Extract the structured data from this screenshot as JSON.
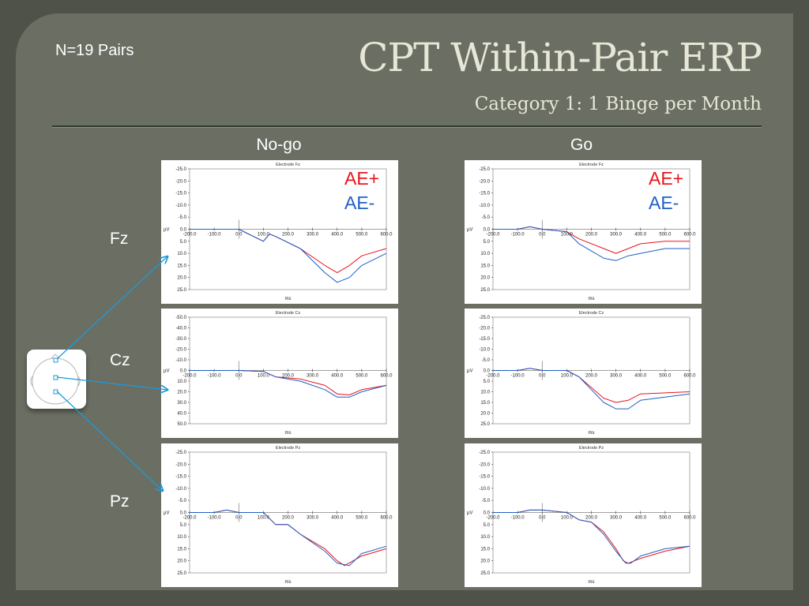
{
  "slide": {
    "count_label": "N=19 Pairs",
    "title": "CPT Within-Pair ERP",
    "subtitle": "Category 1: 1 Binge per Month",
    "accent_color": "#1b9bd8"
  },
  "columns": [
    "No-go",
    "Go"
  ],
  "rows": [
    "Fz",
    "Cz",
    "Pz"
  ],
  "legend": {
    "ae_plus": "AE+",
    "ae_minus": "AE-",
    "ae_plus_color": "#e8141c",
    "ae_minus_color": "#1f5fc4"
  },
  "chart_data": [
    {
      "type": "line",
      "condition": "No-go",
      "title": "Electrode Fz",
      "xlabel": "ms",
      "ylabel": "µV",
      "x": [
        -200,
        -100,
        0,
        100,
        200,
        300,
        400,
        500,
        600
      ],
      "xtick_labels": [
        "-200.0",
        "-100.0",
        "0.0",
        "100.0",
        "200.0",
        "300.0",
        "400.0",
        "500.0",
        "600.0"
      ],
      "ytick_labels": [
        "-25.0",
        "-20.0",
        "-15.0",
        "-10.0",
        "-5.0",
        "0.0",
        "5.0",
        "10.0",
        "15.0",
        "20.0",
        "25.0"
      ],
      "ylim": [
        -25,
        25
      ],
      "inverted_y": true,
      "series": [
        {
          "name": "AE+",
          "values": [
            0,
            0,
            0,
            0,
            5,
            2,
            3,
            8,
            15,
            18,
            15,
            11,
            8
          ],
          "x": [
            -200,
            -100,
            -50,
            0,
            100,
            125,
            150,
            250,
            350,
            400,
            450,
            500,
            600
          ]
        },
        {
          "name": "AE-",
          "values": [
            0,
            0,
            0,
            0,
            5,
            2,
            3,
            8,
            18,
            22,
            20,
            15,
            10
          ],
          "x": [
            -200,
            -100,
            -50,
            0,
            100,
            125,
            150,
            250,
            350,
            400,
            450,
            500,
            600
          ]
        }
      ]
    },
    {
      "type": "line",
      "condition": "Go",
      "title": "Electrode Fz",
      "xlabel": "ms",
      "ylabel": "µV",
      "x": [
        -200,
        -100,
        0,
        100,
        200,
        300,
        400,
        500,
        600
      ],
      "xtick_labels": [
        "-200.0",
        "-100.0",
        "0.0",
        "100.0",
        "200.0",
        "300.0",
        "400.0",
        "500.0",
        "600.0"
      ],
      "ytick_labels": [
        "-25.0",
        "-20.0",
        "-15.0",
        "-10.0",
        "-5.0",
        "0.0",
        "5.0",
        "10.0",
        "15.0",
        "20.0",
        "25.0"
      ],
      "ylim": [
        -25,
        25
      ],
      "inverted_y": true,
      "series": [
        {
          "name": "AE+",
          "values": [
            0,
            0,
            -1,
            0,
            1,
            4,
            8,
            10,
            8,
            6,
            5,
            5
          ],
          "x": [
            -200,
            -100,
            -50,
            0,
            100,
            150,
            250,
            300,
            350,
            400,
            500,
            600
          ]
        },
        {
          "name": "AE-",
          "values": [
            0,
            0,
            -1,
            0,
            1,
            6,
            12,
            13,
            11,
            10,
            8,
            8
          ],
          "x": [
            -200,
            -100,
            -50,
            0,
            100,
            150,
            250,
            300,
            350,
            400,
            500,
            600
          ]
        }
      ]
    },
    {
      "type": "line",
      "condition": "No-go",
      "title": "Electrode Cz",
      "xlabel": "ms",
      "ylabel": "µV",
      "x": [
        -200,
        -100,
        0,
        100,
        200,
        300,
        400,
        500,
        600
      ],
      "xtick_labels": [
        "-200.0",
        "-100.0",
        "0.0",
        "100.0",
        "200.0",
        "300.0",
        "400.0",
        "500.0",
        "600.0"
      ],
      "ytick_labels": [
        "-50.0",
        "-40.0",
        "-30.0",
        "-20.0",
        "-10.0",
        "0.0",
        "10.0",
        "20.0",
        "30.0",
        "40.0",
        "50.0"
      ],
      "ylim": [
        -50,
        50
      ],
      "inverted_y": true,
      "series": [
        {
          "name": "AE+",
          "values": [
            0,
            0,
            0,
            0,
            1,
            6,
            8,
            14,
            22,
            23,
            18,
            14
          ],
          "x": [
            -200,
            -100,
            -50,
            0,
            100,
            150,
            250,
            350,
            400,
            450,
            500,
            600
          ]
        },
        {
          "name": "AE-",
          "values": [
            0,
            0,
            0,
            0,
            1,
            6,
            10,
            18,
            25,
            25,
            20,
            14
          ],
          "x": [
            -200,
            -100,
            -50,
            0,
            100,
            150,
            250,
            350,
            400,
            450,
            500,
            600
          ]
        }
      ]
    },
    {
      "type": "line",
      "condition": "Go",
      "title": "Electrode Cz",
      "xlabel": "ms",
      "ylabel": "µV",
      "x": [
        -200,
        -100,
        0,
        100,
        200,
        300,
        400,
        500,
        600
      ],
      "xtick_labels": [
        "-200.0",
        "-100.0",
        "0.0",
        "100.0",
        "200.0",
        "300.0",
        "400.0",
        "500.0",
        "600.0"
      ],
      "ytick_labels": [
        "-25.0",
        "-20.0",
        "-15.0",
        "-10.0",
        "-5.0",
        "0.0",
        "5.0",
        "10.0",
        "15.0",
        "20.0",
        "25.0"
      ],
      "ylim": [
        -25,
        25
      ],
      "inverted_y": true,
      "series": [
        {
          "name": "AE+",
          "values": [
            0,
            0,
            -1,
            0,
            0,
            3,
            8,
            13,
            15,
            14,
            11,
            10
          ],
          "x": [
            -200,
            -100,
            -50,
            0,
            100,
            150,
            200,
            250,
            300,
            350,
            400,
            600
          ]
        },
        {
          "name": "AE-",
          "values": [
            0,
            0,
            -1,
            0,
            0,
            3,
            9,
            15,
            18,
            18,
            14,
            11
          ],
          "x": [
            -200,
            -100,
            -50,
            0,
            100,
            150,
            200,
            250,
            300,
            350,
            400,
            600
          ]
        }
      ]
    },
    {
      "type": "line",
      "condition": "No-go",
      "title": "Electrode Pz",
      "xlabel": "ms",
      "ylabel": "µV",
      "x": [
        -200,
        -100,
        0,
        100,
        200,
        300,
        400,
        500,
        600
      ],
      "xtick_labels": [
        "-200.0",
        "-100.0",
        "0.0",
        "100.0",
        "200.0",
        "300.0",
        "400.0",
        "500.0",
        "600.0"
      ],
      "ytick_labels": [
        "-25.0",
        "-20.0",
        "-15.0",
        "-10.0",
        "-5.0",
        "0.0",
        "5.0",
        "10.0",
        "15.0",
        "20.0",
        "25.0"
      ],
      "ylim": [
        -25,
        25
      ],
      "inverted_y": true,
      "series": [
        {
          "name": "AE+",
          "values": [
            0,
            0,
            -1,
            0,
            0,
            5,
            5,
            9,
            15,
            20,
            22,
            18,
            15
          ],
          "x": [
            -200,
            -100,
            -50,
            0,
            100,
            150,
            200,
            250,
            350,
            400,
            430,
            500,
            600
          ]
        },
        {
          "name": "AE-",
          "values": [
            0,
            0,
            -1,
            0,
            0,
            5,
            5,
            9,
            16,
            21,
            22,
            17,
            14
          ],
          "x": [
            -200,
            -100,
            -50,
            0,
            100,
            150,
            200,
            250,
            350,
            400,
            450,
            500,
            600
          ]
        }
      ]
    },
    {
      "type": "line",
      "condition": "Go",
      "title": "Electrode Pz",
      "xlabel": "ms",
      "ylabel": "µV",
      "x": [
        -200,
        -100,
        0,
        100,
        200,
        300,
        400,
        500,
        600
      ],
      "xtick_labels": [
        "-200.0",
        "-100.0",
        "0.0",
        "100.0",
        "200.0",
        "300.0",
        "400.0",
        "500.0",
        "600.0"
      ],
      "ytick_labels": [
        "-25.0",
        "-20.0",
        "-15.0",
        "-10.0",
        "-5.0",
        "0.0",
        "5.0",
        "10.0",
        "15.0",
        "20.0",
        "25.0"
      ],
      "ylim": [
        -25,
        25
      ],
      "inverted_y": true,
      "series": [
        {
          "name": "AE+",
          "values": [
            0,
            0,
            -1,
            -1,
            0,
            3,
            4,
            8,
            15,
            20,
            21,
            19,
            16,
            14
          ],
          "x": [
            -200,
            -100,
            -50,
            0,
            100,
            150,
            200,
            250,
            300,
            330,
            350,
            400,
            500,
            600
          ]
        },
        {
          "name": "AE-",
          "values": [
            0,
            0,
            -1,
            -1,
            0,
            3,
            4,
            9,
            16,
            21,
            21,
            18,
            15,
            14
          ],
          "x": [
            -200,
            -100,
            -50,
            0,
            100,
            150,
            200,
            250,
            300,
            340,
            360,
            400,
            500,
            600
          ]
        }
      ]
    }
  ]
}
